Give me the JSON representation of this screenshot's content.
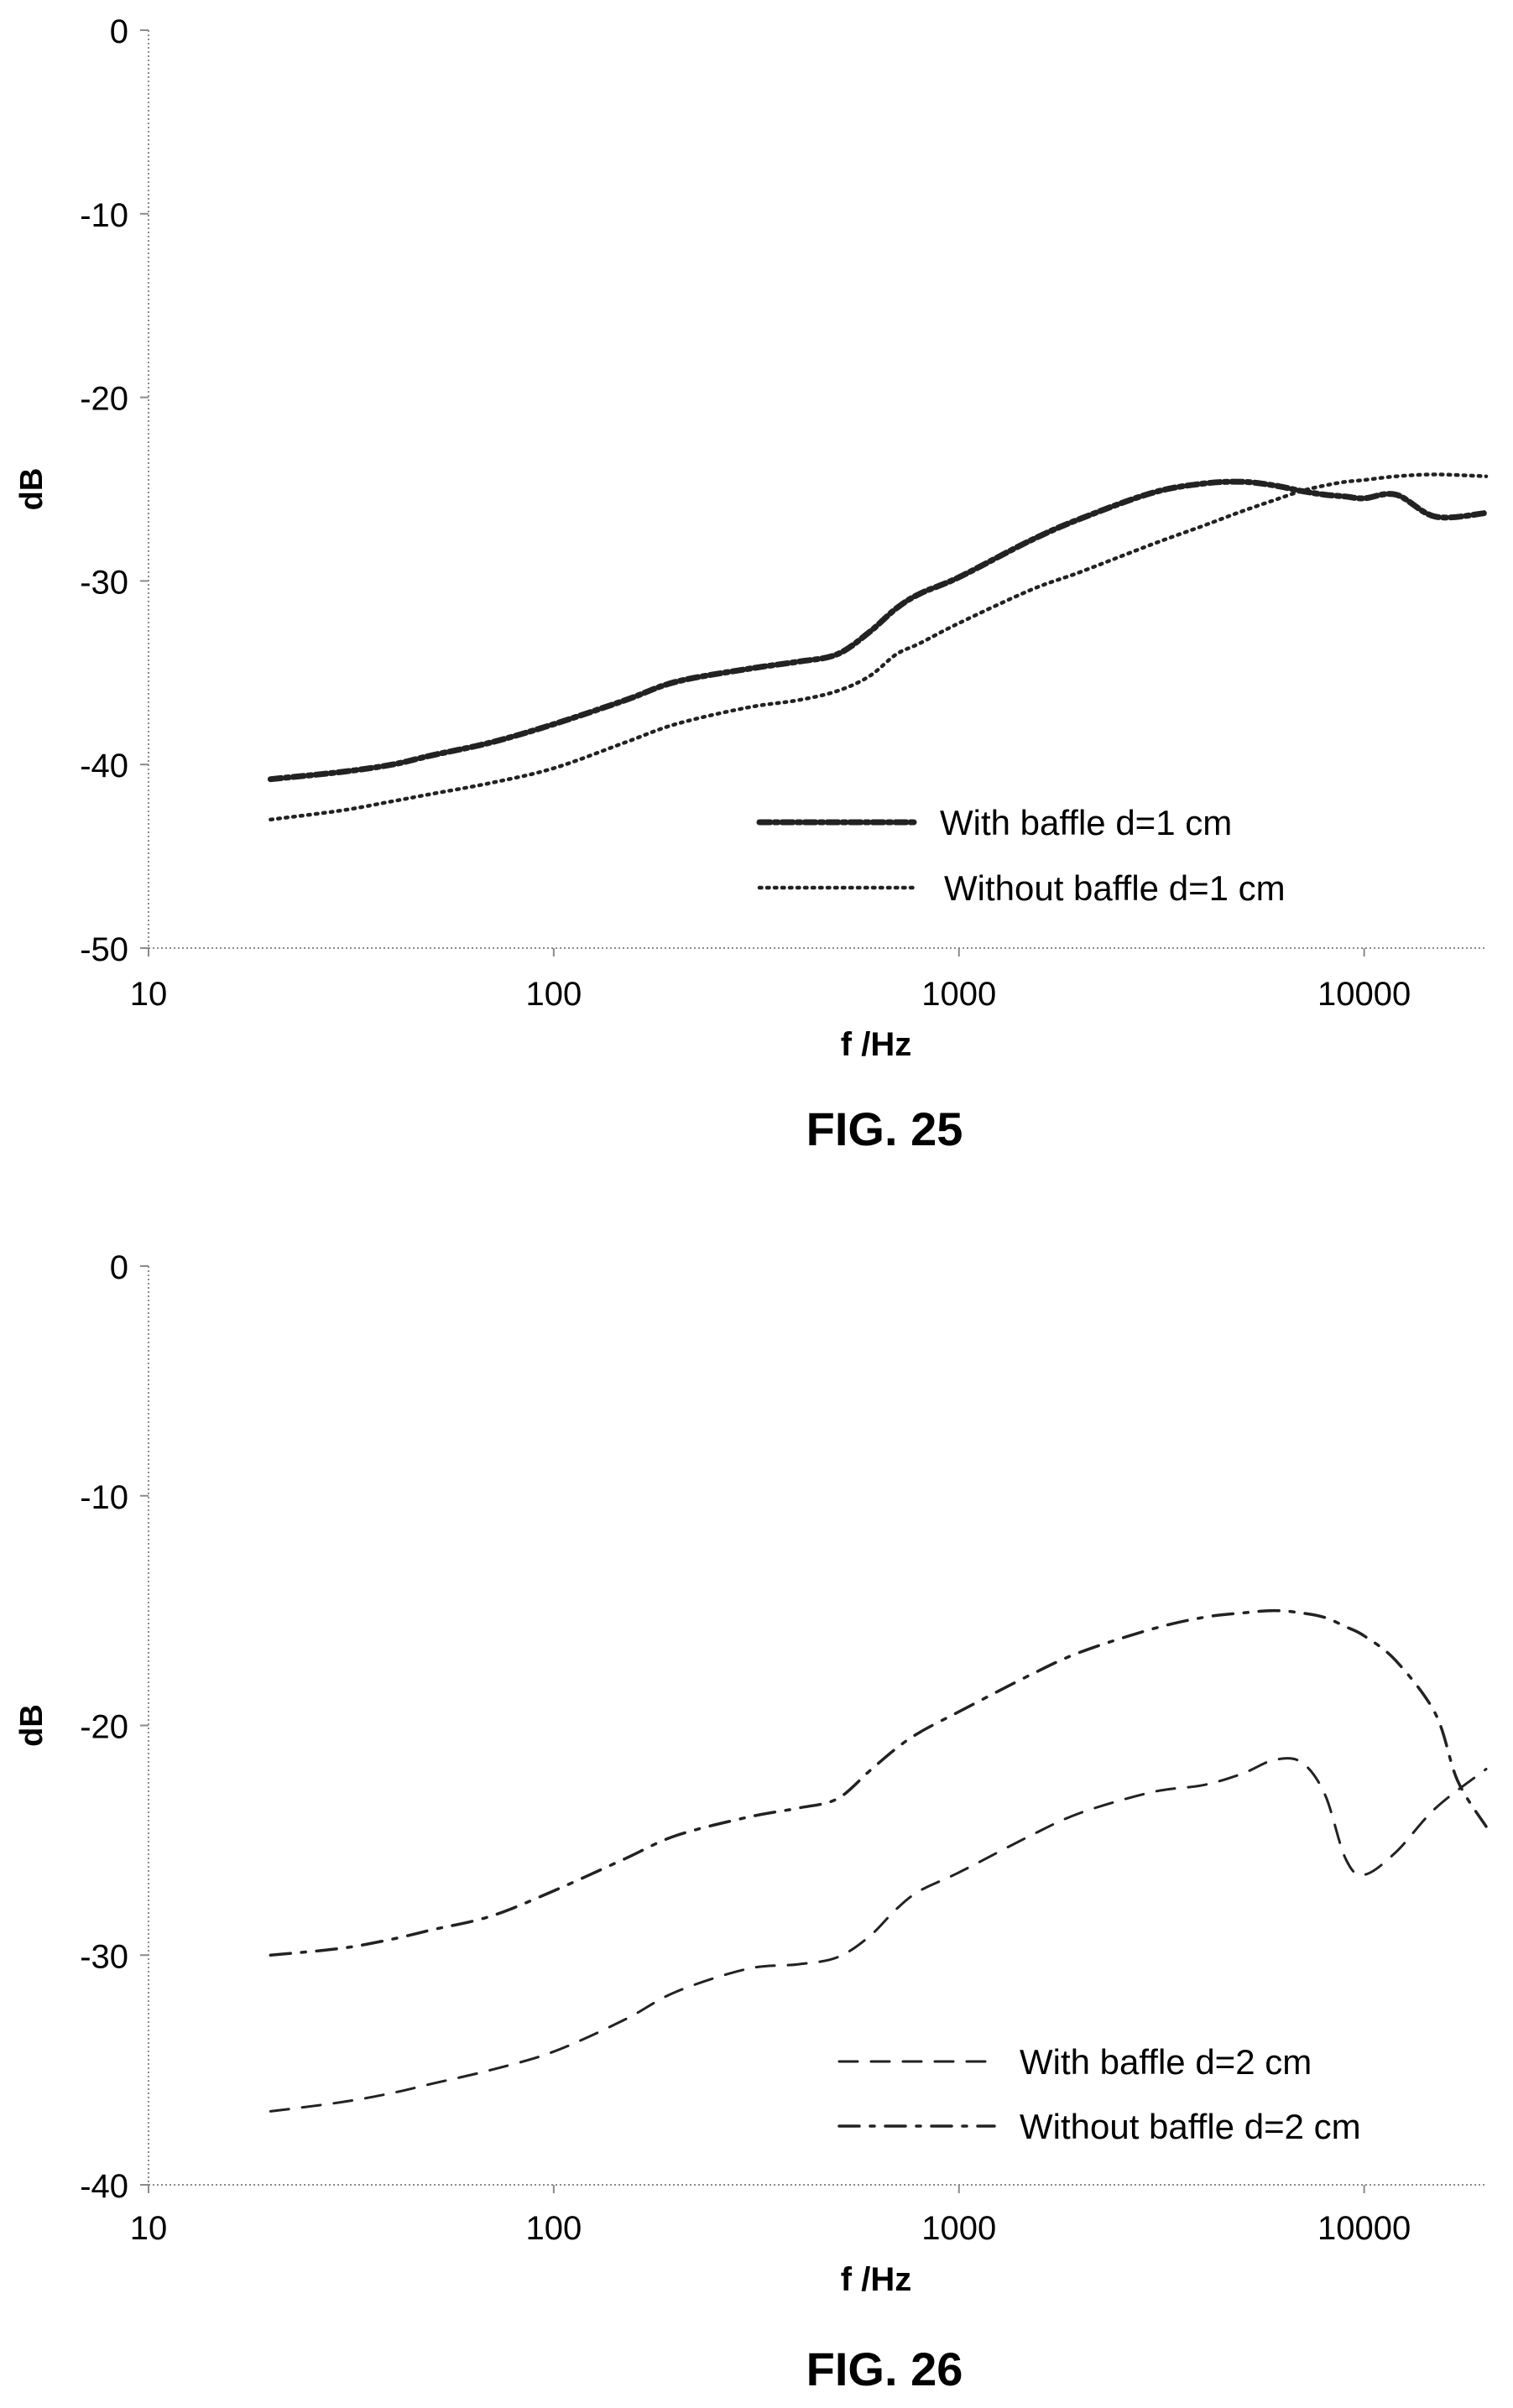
{
  "chart_data": [
    {
      "type": "line",
      "caption": "FIG. 25",
      "xlabel": "f /Hz",
      "ylabel": "dB",
      "xscale": "log",
      "xlim": [
        10,
        20000
      ],
      "ylim": [
        -50,
        0
      ],
      "x_ticks": [
        10,
        100,
        1000,
        10000
      ],
      "x_tick_labels": [
        "10",
        "100",
        "1000",
        "10000"
      ],
      "y_ticks": [
        0,
        -10,
        -20,
        -30,
        -40,
        -50
      ],
      "y_tick_labels": [
        "0",
        "-10",
        "-20",
        "-30",
        "-40",
        "-50"
      ],
      "grid": false,
      "legend_position": "lower-right",
      "series": [
        {
          "name": "With baffle d=1 cm",
          "style": "dashed-dotted",
          "x": [
            20,
            30,
            40,
            50,
            70,
            100,
            150,
            200,
            300,
            400,
            500,
            600,
            700,
            800,
            1000,
            1500,
            2000,
            3000,
            4000,
            5000,
            6000,
            7000,
            8000,
            9000,
            10000,
            12000,
            15000,
            20000
          ],
          "y": [
            -40.8,
            -40.4,
            -40.0,
            -39.5,
            -38.8,
            -37.8,
            -36.5,
            -35.5,
            -34.8,
            -34.4,
            -34.0,
            -32.8,
            -31.5,
            -30.7,
            -29.8,
            -27.8,
            -26.6,
            -25.2,
            -24.7,
            -24.6,
            -24.8,
            -25.1,
            -25.3,
            -25.4,
            -25.5,
            -25.3,
            -26.5,
            -26.3
          ]
        },
        {
          "name": "Without baffle d=1 cm",
          "style": "dotted",
          "x": [
            20,
            30,
            40,
            50,
            70,
            100,
            150,
            200,
            300,
            400,
            500,
            600,
            700,
            800,
            1000,
            1500,
            2000,
            3000,
            4000,
            5000,
            6000,
            7000,
            8000,
            9000,
            10000,
            12000,
            15000,
            20000
          ],
          "y": [
            -43.0,
            -42.5,
            -42.0,
            -41.6,
            -41.0,
            -40.2,
            -38.8,
            -37.8,
            -36.9,
            -36.5,
            -36.0,
            -35.2,
            -34.0,
            -33.4,
            -32.3,
            -30.5,
            -29.5,
            -28.0,
            -27.0,
            -26.2,
            -25.6,
            -25.1,
            -24.8,
            -24.6,
            -24.5,
            -24.3,
            -24.2,
            -24.3
          ]
        }
      ]
    },
    {
      "type": "line",
      "caption": "FIG. 26",
      "xlabel": "f /Hz",
      "ylabel": "dB",
      "xscale": "log",
      "xlim": [
        10,
        20000
      ],
      "ylim": [
        -40,
        0
      ],
      "x_ticks": [
        10,
        100,
        1000,
        10000
      ],
      "x_tick_labels": [
        "10",
        "100",
        "1000",
        "10000"
      ],
      "y_ticks": [
        0,
        -10,
        -20,
        -30,
        -40
      ],
      "y_tick_labels": [
        "0",
        "-10",
        "-20",
        "-30",
        "-40"
      ],
      "grid": false,
      "legend_position": "lower-right",
      "series": [
        {
          "name": "With baffle d=2 cm",
          "style": "dashed",
          "x": [
            20,
            30,
            40,
            50,
            70,
            100,
            150,
            200,
            300,
            400,
            500,
            600,
            700,
            800,
            1000,
            1500,
            2000,
            3000,
            4000,
            5000,
            6000,
            7000,
            8000,
            9000,
            10000,
            12000,
            15000,
            20000
          ],
          "y": [
            -36.8,
            -36.4,
            -36.0,
            -35.6,
            -35.0,
            -34.2,
            -32.8,
            -31.6,
            -30.6,
            -30.4,
            -30.1,
            -29.2,
            -28.0,
            -27.2,
            -26.4,
            -24.8,
            -23.8,
            -22.9,
            -22.6,
            -22.1,
            -21.5,
            -21.6,
            -23.0,
            -25.8,
            -26.5,
            -25.5,
            -23.6,
            -21.9
          ]
        },
        {
          "name": "Without baffle d=2 cm",
          "style": "dash-dot",
          "x": [
            20,
            30,
            40,
            50,
            70,
            100,
            150,
            200,
            300,
            400,
            500,
            600,
            700,
            800,
            1000,
            1500,
            2000,
            3000,
            4000,
            5000,
            6000,
            7000,
            8000,
            9000,
            10000,
            12000,
            15000,
            17000,
            20000
          ],
          "y": [
            -30.0,
            -29.7,
            -29.3,
            -28.9,
            -28.3,
            -27.2,
            -25.8,
            -24.8,
            -24.0,
            -23.6,
            -23.2,
            -22.0,
            -21.0,
            -20.3,
            -19.4,
            -17.8,
            -16.8,
            -15.8,
            -15.3,
            -15.1,
            -15.0,
            -15.1,
            -15.3,
            -15.7,
            -16.1,
            -17.2,
            -19.5,
            -22.4,
            -24.4
          ]
        }
      ]
    }
  ]
}
